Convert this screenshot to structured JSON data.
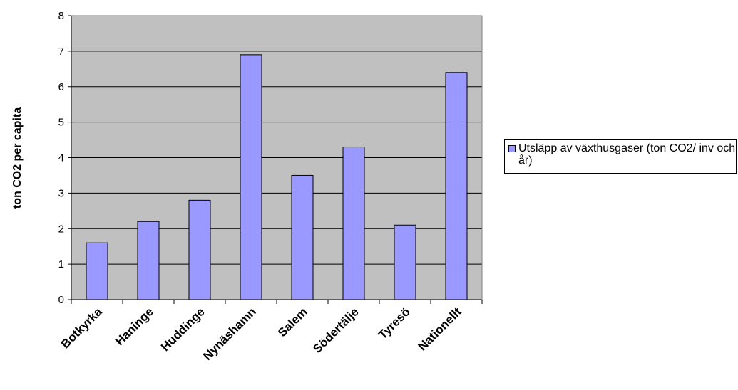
{
  "chart_data": {
    "type": "bar",
    "title": "",
    "xlabel": "",
    "ylabel": "ton CO2 per capita",
    "categories": [
      "Botkyrka",
      "Haninge",
      "Huddinge",
      "Nynäshamn",
      "Salem",
      "Södertälje",
      "Tyresö",
      "Nationellt"
    ],
    "series": [
      {
        "name": "Utsläpp av växthusgaser (ton CO2/ inv och år)",
        "values": [
          1.6,
          2.2,
          2.8,
          6.9,
          3.5,
          4.3,
          2.1,
          6.4
        ]
      }
    ],
    "ylim": [
      0,
      8
    ],
    "yticks": [
      "0",
      "1",
      "2",
      "3",
      "4",
      "5",
      "6",
      "7",
      "8"
    ],
    "grid": true,
    "legend_position": "right",
    "colors": {
      "plot_background": "#c0c0c0",
      "bar_fill": "#9999ff",
      "bar_stroke": "#000000",
      "gridline": "#000000"
    }
  }
}
